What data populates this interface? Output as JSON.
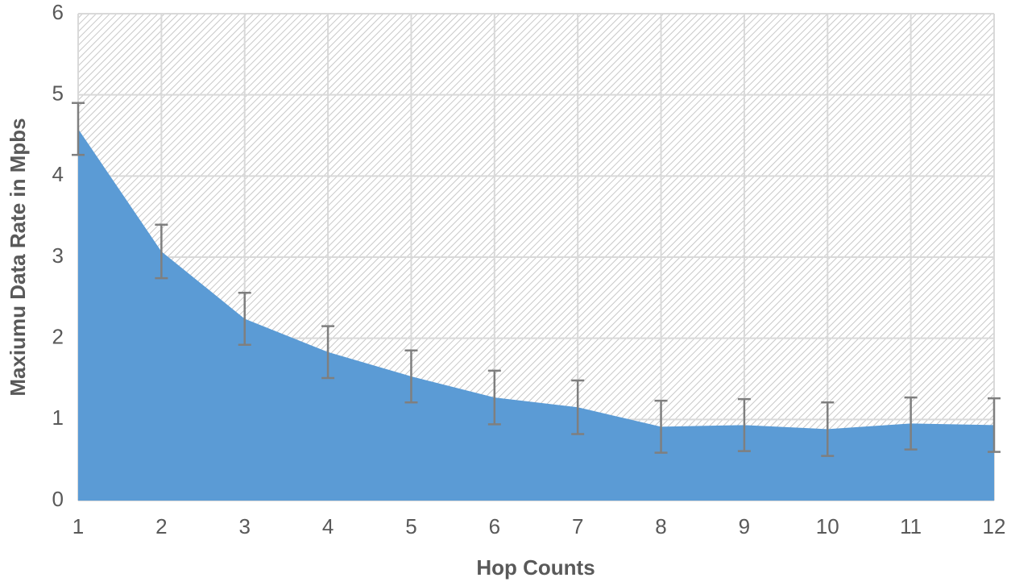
{
  "chart_data": {
    "type": "area",
    "x_label": "Hop Counts",
    "y_label": "Maxiumu Data Rate in Mpbs",
    "x": [
      1,
      2,
      3,
      4,
      5,
      6,
      7,
      8,
      9,
      10,
      11,
      12
    ],
    "series": [
      {
        "color": "#5b9bd5",
        "values": [
          4.58,
          3.07,
          2.24,
          1.83,
          1.53,
          1.27,
          1.15,
          0.91,
          0.93,
          0.88,
          0.95,
          0.93
        ],
        "errors": [
          0.32,
          0.33,
          0.32,
          0.32,
          0.32,
          0.33,
          0.33,
          0.32,
          0.32,
          0.33,
          0.32,
          0.33
        ],
        "error_color": "#7f7f7f"
      }
    ],
    "xlim": [
      1,
      12
    ],
    "xticks": [
      1,
      2,
      3,
      4,
      5,
      6,
      7,
      8,
      9,
      10,
      11,
      12
    ],
    "ylim": [
      0,
      6
    ],
    "yticks": [
      0,
      1,
      2,
      3,
      4,
      5,
      6
    ],
    "grid": true
  }
}
